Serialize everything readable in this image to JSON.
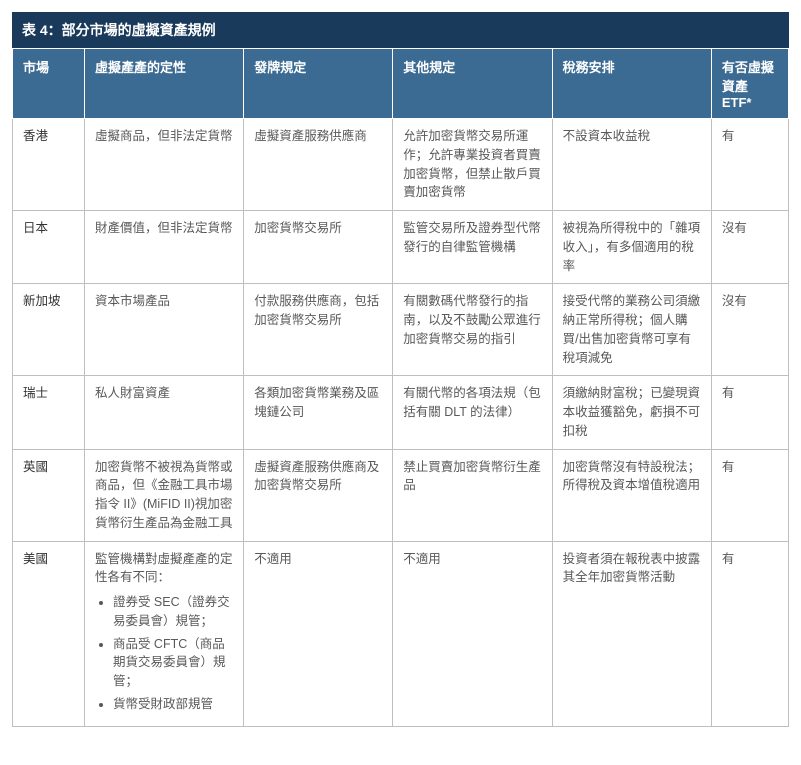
{
  "title": "表 4：部分市場的虛擬資產規例",
  "columns": [
    "市場",
    "虛擬產產的定性",
    "發牌規定",
    "其他規定",
    "稅務安排",
    "有否虛擬資產 ETF*"
  ],
  "rows": [
    {
      "market": "香港",
      "nature": "虛擬商品，但非法定貨幣",
      "licensing": "虛擬資產服務供應商",
      "other": "允許加密貨幣交易所運作；允許專業投資者買賣加密貨幣，但禁止散戶買賣加密貨幣",
      "tax": "不設資本收益稅",
      "etf": "有"
    },
    {
      "market": "日本",
      "nature": "財產價值，但非法定貨幣",
      "licensing": "加密貨幣交易所",
      "other": "監管交易所及證券型代幣發行的自律監管機構",
      "tax": "被視為所得稅中的「雜項收入」，有多個適用的稅率",
      "etf": "沒有"
    },
    {
      "market": "新加坡",
      "nature": "資本市場產品",
      "licensing": "付款服務供應商，包括加密貨幣交易所",
      "other": "有關數碼代幣發行的指南，以及不鼓勵公眾進行加密貨幣交易的指引",
      "tax": "接受代幣的業務公司須繳納正常所得稅；個人購買/出售加密貨幣可享有稅項減免",
      "etf": "沒有"
    },
    {
      "market": "瑞士",
      "nature": "私人財富資產",
      "licensing": "各類加密貨幣業務及區塊鏈公司",
      "other": "有關代幣的各項法規（包括有關 DLT 的法律）",
      "tax": "須繳納財富稅；已變現資本收益獲豁免，虧損不可扣稅",
      "etf": "有"
    },
    {
      "market": "英國",
      "nature": "加密貨幣不被視為貨幣或商品，但《金融工具市場指令 II》(MiFID II)視加密貨幣衍生產品為金融工具",
      "licensing": "虛擬資產服務供應商及加密貨幣交易所",
      "other": "禁止買賣加密貨幣衍生產品",
      "tax": "加密貨幣沒有特設稅法；所得稅及資本增值稅適用",
      "etf": "有"
    },
    {
      "market": "美國",
      "nature_intro": "監管機構對虛擬產產的定性各有不同：",
      "nature_items": [
        "證券受 SEC（證券交易委員會）規管；",
        "商品受 CFTC（商品期貨交易委員會）規管；",
        "貨幣受財政部規管"
      ],
      "licensing": "不適用",
      "other": "不適用",
      "tax": "投資者須在報稅表中披露其全年加密貨幣活動",
      "etf": "有"
    }
  ]
}
